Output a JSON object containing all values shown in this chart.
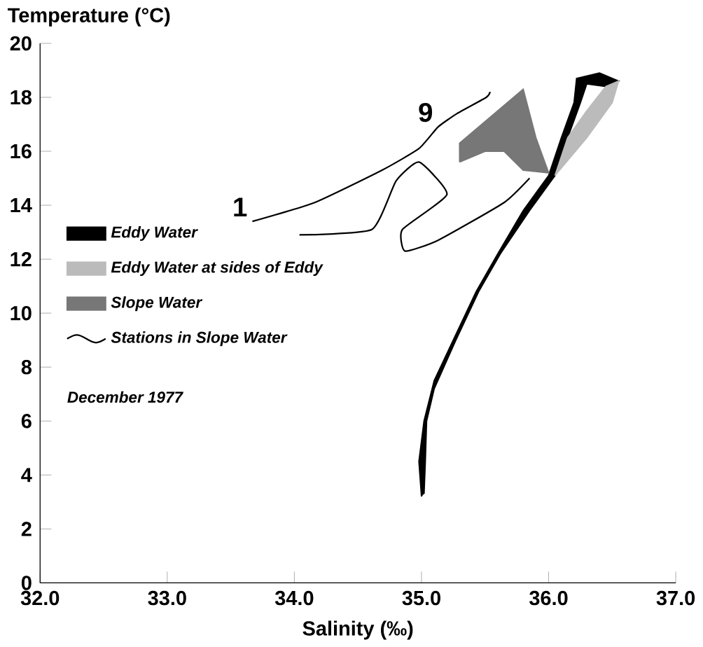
{
  "chart_data": {
    "type": "line",
    "xlabel": "Salinity (‰)",
    "ylabel": "Temperature (°C)",
    "xlim": [
      32.0,
      37.0
    ],
    "ylim": [
      0,
      20
    ],
    "xticks": [
      {
        "value": 32,
        "label": "32.0"
      },
      {
        "value": 33,
        "label": "33.0"
      },
      {
        "value": 34,
        "label": "34.0"
      },
      {
        "value": 35,
        "label": "35.0"
      },
      {
        "value": 36,
        "label": "36.0"
      },
      {
        "value": 37,
        "label": "37.0"
      }
    ],
    "yticks": [
      0,
      2,
      4,
      6,
      8,
      10,
      12,
      14,
      16,
      18,
      20
    ],
    "legend": "left",
    "grid": false,
    "annotations": [
      {
        "text": "1",
        "x": 33.67,
        "y": 13.4
      },
      {
        "text": "9",
        "x": 35.13,
        "y": 16.9
      },
      "December 1977"
    ],
    "series": [
      {
        "name": "Eddy Water",
        "type": "area",
        "color": "#000000",
        "x": [
          35.0,
          34.98,
          35.02,
          35.1,
          35.25,
          35.43,
          35.6,
          35.8,
          36.0,
          36.1,
          36.2,
          36.22,
          36.4,
          36.55,
          36.45,
          36.3,
          36.25,
          36.15,
          36.05,
          35.85,
          35.62,
          35.45,
          35.27,
          35.1,
          35.04,
          35.03,
          35.02
        ],
        "values": [
          3.2,
          4.5,
          6,
          7.5,
          9,
          10.8,
          12.2,
          13.8,
          15.1,
          16.5,
          17.8,
          18.7,
          18.9,
          18.6,
          18.4,
          18.5,
          17.8,
          16.5,
          15.1,
          13.8,
          12.2,
          10.8,
          9,
          7.2,
          6,
          4.5,
          3.3
        ]
      },
      {
        "name": "Eddy Water at sides of Eddy",
        "type": "area",
        "color": "#bbbbbb",
        "x": [
          36.05,
          36.3,
          36.5,
          36.55,
          36.45,
          36.3,
          36.15,
          36.05
        ],
        "values": [
          15.1,
          16.5,
          17.8,
          18.6,
          18.4,
          17.5,
          16.5,
          15.1
        ]
      },
      {
        "name": "Slope Water",
        "type": "area",
        "color": "#777777",
        "x": [
          35.3,
          35.3,
          35.55,
          35.8,
          35.9,
          36.0,
          35.8,
          35.65,
          35.5,
          35.3
        ],
        "values": [
          15.6,
          16.3,
          17.3,
          18.3,
          16.5,
          15.2,
          15.3,
          16.0,
          16.0,
          15.6
        ]
      },
      {
        "name": "Stations in Slope Water",
        "color": "#000000",
        "x": [
          33.67,
          34.16,
          34.69,
          34.98,
          35.13,
          35.28,
          35.51,
          35.54
        ],
        "values": [
          13.4,
          14.1,
          15.3,
          16.1,
          16.9,
          17.4,
          18.0,
          18.2
        ]
      },
      {
        "color": "#000000",
        "x": [
          34.04,
          34.61,
          34.8,
          34.98,
          35.2,
          34.85,
          34.87,
          35.13,
          35.65,
          35.85
        ],
        "values": [
          12.9,
          13.1,
          14.9,
          15.6,
          14.4,
          13.1,
          12.3,
          12.7,
          14.1,
          15.0
        ]
      }
    ]
  }
}
